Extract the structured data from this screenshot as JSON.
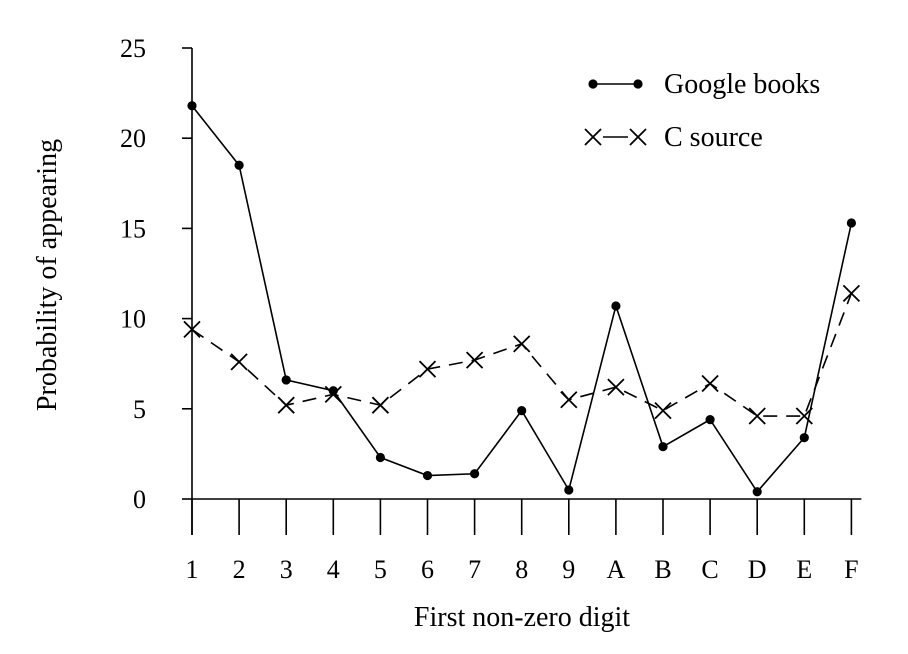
{
  "chart_data": {
    "type": "line",
    "title": "",
    "xlabel": "First non-zero digit",
    "ylabel": "Probability of appearing",
    "categories": [
      "1",
      "2",
      "3",
      "4",
      "5",
      "6",
      "7",
      "8",
      "9",
      "A",
      "B",
      "C",
      "D",
      "E",
      "F"
    ],
    "ylim": [
      0,
      25
    ],
    "yticks": [
      0,
      5,
      10,
      15,
      20,
      25
    ],
    "grid": false,
    "legend_position": "top-right",
    "series": [
      {
        "name": "Google books",
        "style": "solid",
        "marker": "dot",
        "color": "#000000",
        "values": [
          21.8,
          18.5,
          6.6,
          6.0,
          2.3,
          1.3,
          1.4,
          4.9,
          0.5,
          10.7,
          2.9,
          4.4,
          0.4,
          3.4,
          15.3
        ]
      },
      {
        "name": "C source",
        "style": "dashed",
        "marker": "x",
        "color": "#000000",
        "values": [
          9.4,
          7.6,
          5.2,
          5.8,
          5.2,
          7.2,
          7.7,
          8.6,
          5.5,
          6.2,
          4.9,
          6.4,
          4.6,
          4.6,
          11.4
        ]
      }
    ]
  }
}
